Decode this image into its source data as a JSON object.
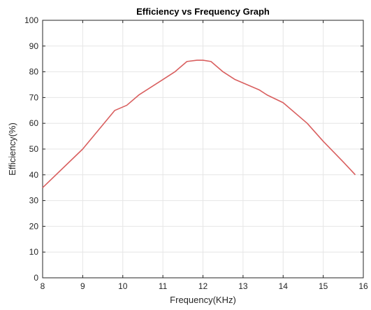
{
  "chart_data": {
    "type": "line",
    "title": "Efficiency vs Frequency Graph",
    "xlabel": "Frequency(KHz)",
    "ylabel": "Efficiency(%)",
    "xlim": [
      8,
      16
    ],
    "ylim": [
      0,
      100
    ],
    "xticks": [
      "8",
      "9",
      "10",
      "11",
      "12",
      "13",
      "14",
      "15",
      "16"
    ],
    "yticks": [
      "0",
      "10",
      "20",
      "30",
      "40",
      "50",
      "60",
      "70",
      "80",
      "90",
      "100"
    ],
    "grid": true,
    "legend": "none",
    "series": [
      {
        "color": "#d95f5f",
        "x": [
          8.0,
          9.0,
          9.8,
          10.1,
          10.4,
          11.0,
          11.3,
          11.6,
          11.85,
          12.0,
          12.2,
          12.5,
          12.8,
          13.4,
          13.6,
          14.0,
          14.6,
          15.0,
          15.5,
          15.8
        ],
        "y": [
          35,
          50,
          65,
          67,
          71,
          77,
          80,
          84,
          84.5,
          84.5,
          84,
          80,
          77,
          73,
          71,
          68,
          60,
          53,
          45,
          40
        ]
      }
    ]
  }
}
